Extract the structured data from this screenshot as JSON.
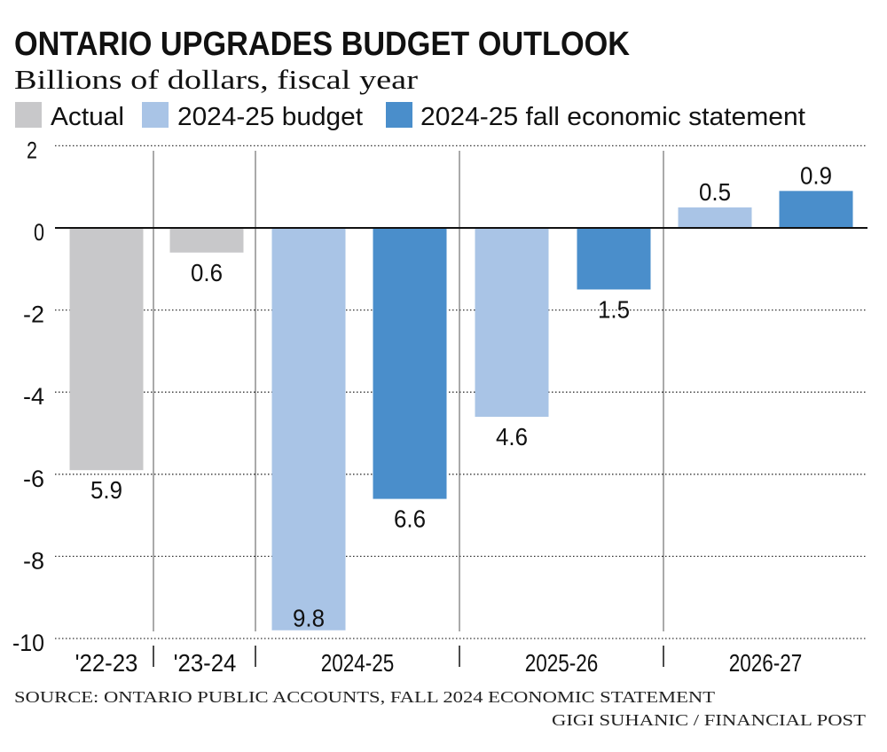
{
  "chart_data": {
    "type": "bar",
    "title": "ONTARIO UPGRADES BUDGET OUTLOOK",
    "subtitle": "Billions of dollars, fiscal year",
    "categories": [
      "'22-23",
      "'23-24",
      "2024-25",
      "2025-26",
      "2026-27"
    ],
    "series": [
      {
        "name": "Actual",
        "color": "#c8c8ca",
        "values": [
          -5.9,
          -0.6,
          null,
          null,
          null
        ],
        "labels": [
          "5.9",
          "0.6",
          null,
          null,
          null
        ]
      },
      {
        "name": "2024-25 budget",
        "color": "#a9c4e6",
        "values": [
          null,
          null,
          -9.8,
          -4.6,
          0.5
        ],
        "labels": [
          null,
          null,
          "9.8",
          "4.6",
          "0.5"
        ]
      },
      {
        "name": "2024-25 fall economic statement",
        "color": "#4a8ecb",
        "values": [
          null,
          null,
          -6.6,
          -1.5,
          0.9
        ],
        "labels": [
          null,
          null,
          "6.6",
          "1.5",
          "0.9"
        ]
      }
    ],
    "ylim": [
      -10,
      2
    ],
    "yticks": [
      2,
      0,
      -2,
      -4,
      -6,
      -8,
      -10
    ],
    "ytick_labels": [
      "2",
      "0",
      "-2",
      "-4",
      "-6",
      "-8",
      "-10"
    ],
    "grid": true,
    "legend": "top-left",
    "source": "SOURCE: ONTARIO PUBLIC ACCOUNTS, FALL 2024 ECONOMIC STATEMENT",
    "credit": "GIGI SUHANIC / FINANCIAL POST"
  }
}
